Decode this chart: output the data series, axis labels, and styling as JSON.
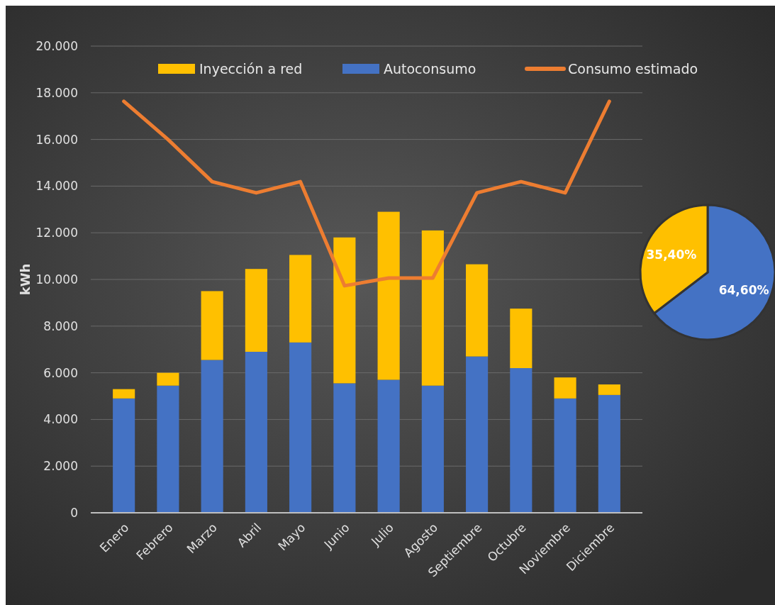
{
  "chart_data": [
    {
      "type": "bar",
      "stacked": true,
      "ylabel": "kWh",
      "categories": [
        "Enero",
        "Febrero",
        "Marzo",
        "Abril",
        "Mayo",
        "Junio",
        "Julio",
        "Agosto",
        "Septiembre",
        "Octubre",
        "Noviembre",
        "Diciembre"
      ],
      "series": [
        {
          "name": "Autoconsumo",
          "color": "#4472c4",
          "values": [
            4900,
            5450,
            6550,
            6900,
            7300,
            5550,
            5700,
            5450,
            6700,
            6200,
            4900,
            5050
          ]
        },
        {
          "name": "Inyección a red",
          "color": "#ffc000",
          "values": [
            400,
            550,
            2950,
            3550,
            3750,
            6250,
            7200,
            6650,
            3950,
            2550,
            900,
            450
          ]
        },
        {
          "name": "Consumo estimado",
          "type": "line",
          "color": "#ed7d31",
          "values": [
            17630,
            16000,
            14190,
            13710,
            14190,
            9730,
            10060,
            10060,
            13710,
            14190,
            13710,
            17630
          ]
        }
      ],
      "ylim": [
        0,
        20000
      ],
      "yticks": [
        {
          "value": 0,
          "label": "0"
        },
        {
          "value": 2000,
          "label": "2.000"
        },
        {
          "value": 4000,
          "label": "4.000"
        },
        {
          "value": 6000,
          "label": "6.000"
        },
        {
          "value": 8000,
          "label": "8.000"
        },
        {
          "value": 10000,
          "label": "10.000"
        },
        {
          "value": 12000,
          "label": "12.000"
        },
        {
          "value": 14000,
          "label": "14.000"
        },
        {
          "value": 16000,
          "label": "16.000"
        },
        {
          "value": 18000,
          "label": "18.000"
        },
        {
          "value": 20000,
          "label": "20.000"
        }
      ],
      "grid": "y",
      "legend": "top",
      "marker": "none",
      "line_style": "solid"
    },
    {
      "type": "pie",
      "categories": [
        null,
        null
      ],
      "values": [
        64.6,
        35.4
      ],
      "colors": [
        "#4472c4",
        "#ffc000"
      ],
      "value_labels": [
        "64,60%",
        "35,40%"
      ]
    }
  ]
}
